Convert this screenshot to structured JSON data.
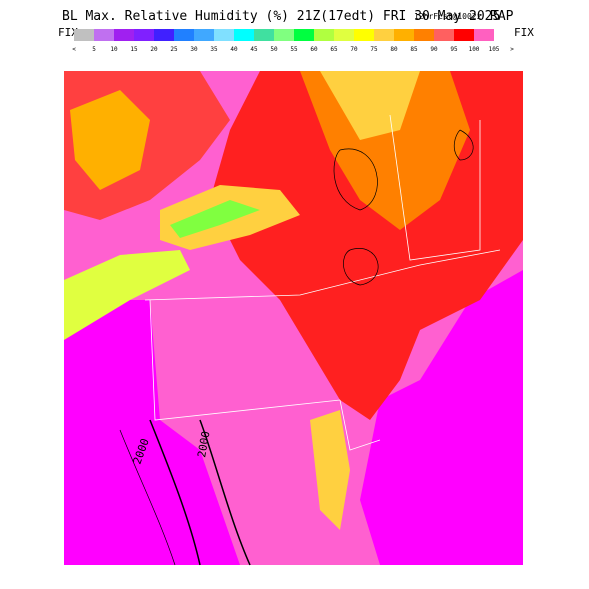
{
  "header": {
    "title": "BL Max. Relative Humidity (%) 21Z(17edt) FRI 30 May 2025",
    "forecast": "12hrFcst@1002z",
    "model": "RAP"
  },
  "colorbar": {
    "left_label": "FIX",
    "right_label": "FIX",
    "labels": [
      "<",
      "5",
      "10",
      "15",
      "20",
      "25",
      "30",
      "35",
      "40",
      "45",
      "50",
      "55",
      "60",
      "65",
      "70",
      "75",
      "80",
      "85",
      "90",
      "95",
      "100",
      "105",
      ">"
    ],
    "colors": [
      "#c0c0c0",
      "#c070f0",
      "#a020f0",
      "#8020ff",
      "#4020ff",
      "#2080ff",
      "#40a8ff",
      "#80e0ff",
      "#00ffff",
      "#40e0a0",
      "#80ff80",
      "#00ff40",
      "#b0ff40",
      "#e0ff40",
      "#ffff00",
      "#ffd040",
      "#ffb000",
      "#ff8000",
      "#ff6060",
      "#ff0000",
      "#ff60c0"
    ]
  },
  "map": {
    "contour_labels": [
      "2000",
      "2000"
    ]
  }
}
